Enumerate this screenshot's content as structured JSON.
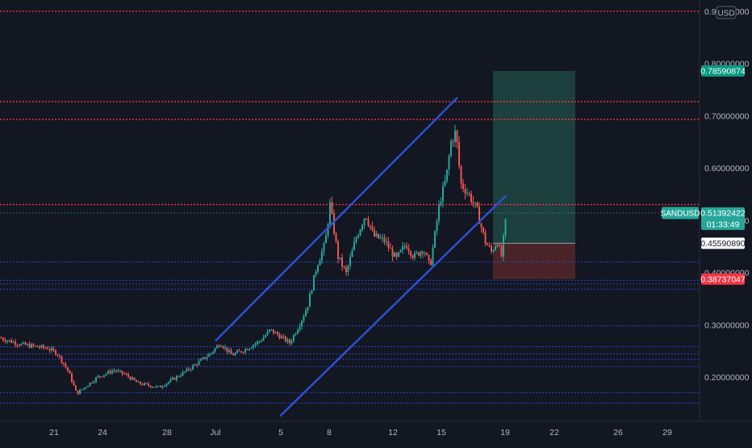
{
  "chart_data": {
    "type": "candlestick",
    "symbol": "SANDUSD",
    "currency": "USD",
    "price_axis": {
      "ticks": [
        0.9,
        0.8,
        0.7,
        0.6,
        0.5,
        0.4,
        0.3,
        0.2
      ],
      "tick_labels": [
        "0.90000000",
        "0.80000000",
        "0.70000000",
        "0.60000000",
        "0.50000000",
        "0.40000000",
        "0.30000000",
        "0.20000000"
      ],
      "range": [
        0.125,
        0.915
      ]
    },
    "time_axis": {
      "labels": [
        "21",
        "24",
        "28",
        "Jul",
        "5",
        "8",
        "12",
        "15",
        "19",
        "22",
        "26",
        "29"
      ]
    },
    "price_badges": {
      "target": "0.78590874",
      "current": "0.51392422",
      "countdown": "01:33:49",
      "entry": "0.45590890",
      "stop": "0.38737047"
    },
    "values": {
      "target": 0.78590874,
      "current": 0.51392422,
      "entry": 0.4559089,
      "stop": 0.38737047
    },
    "horizontal_levels": {
      "red_dotted": [
        0.9,
        0.727,
        0.693,
        0.53
      ],
      "blue_dotted": [
        0.42,
        0.385,
        0.378,
        0.368,
        0.298,
        0.258,
        0.244,
        0.234,
        0.22,
        0.17,
        0.15
      ]
    },
    "channel": {
      "upper": [
        [
          0.269,
          "Jul 1"
        ],
        [
          0.735,
          "Jul 16"
        ]
      ],
      "lower": [
        [
          0.125,
          "Jul 5"
        ],
        [
          0.547,
          "Jul 19"
        ]
      ]
    },
    "trade_box": {
      "entry": 0.4559089,
      "target": 0.78590874,
      "stop": 0.38737047
    },
    "colors": {
      "background": "#131722",
      "up_candle": "#26a69a",
      "down_candle": "#ef5350",
      "red_level": "#f23645",
      "blue_level": "#2a3fd6",
      "channel_line": "#2f4fd0",
      "profit_zone": "#1d3f3e",
      "loss_zone": "#4a2429",
      "target_badge": "#089981",
      "stop_badge": "#f23645",
      "entry_badge": "#ffffff"
    }
  }
}
